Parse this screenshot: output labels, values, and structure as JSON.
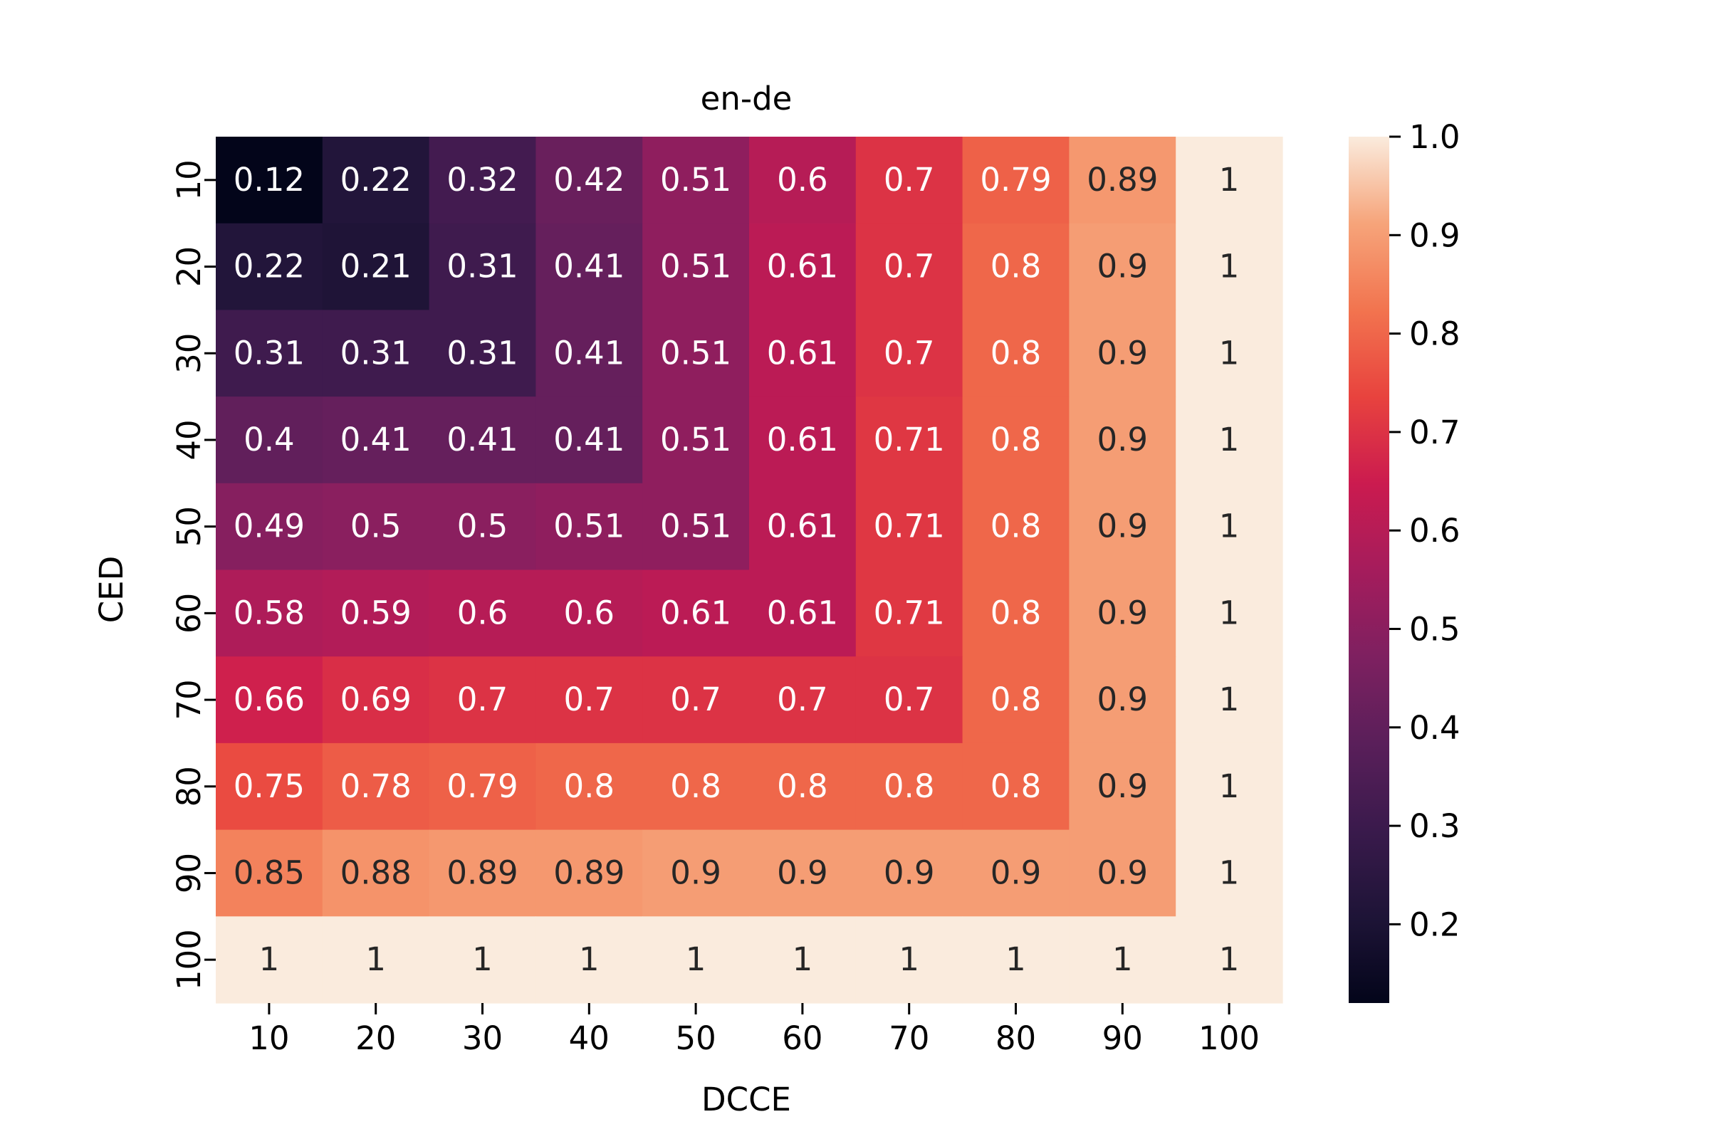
{
  "chart_data": {
    "type": "heatmap",
    "title": "en-de",
    "xlabel": "DCCE",
    "ylabel": "CED",
    "x_categories": [
      "10",
      "20",
      "30",
      "40",
      "50",
      "60",
      "70",
      "80",
      "90",
      "100"
    ],
    "y_categories": [
      "10",
      "20",
      "30",
      "40",
      "50",
      "60",
      "70",
      "80",
      "90",
      "100"
    ],
    "values": [
      [
        0.12,
        0.22,
        0.32,
        0.42,
        0.51,
        0.6,
        0.7,
        0.79,
        0.89,
        1
      ],
      [
        0.22,
        0.21,
        0.31,
        0.41,
        0.51,
        0.61,
        0.7,
        0.8,
        0.9,
        1
      ],
      [
        0.31,
        0.31,
        0.31,
        0.41,
        0.51,
        0.61,
        0.7,
        0.8,
        0.9,
        1
      ],
      [
        0.4,
        0.41,
        0.41,
        0.41,
        0.51,
        0.61,
        0.71,
        0.8,
        0.9,
        1
      ],
      [
        0.49,
        0.5,
        0.5,
        0.51,
        0.51,
        0.61,
        0.71,
        0.8,
        0.9,
        1
      ],
      [
        0.58,
        0.59,
        0.6,
        0.6,
        0.61,
        0.61,
        0.71,
        0.8,
        0.9,
        1
      ],
      [
        0.66,
        0.69,
        0.7,
        0.7,
        0.7,
        0.7,
        0.7,
        0.8,
        0.9,
        1
      ],
      [
        0.75,
        0.78,
        0.79,
        0.8,
        0.8,
        0.8,
        0.8,
        0.8,
        0.9,
        1
      ],
      [
        0.85,
        0.88,
        0.89,
        0.89,
        0.9,
        0.9,
        0.9,
        0.9,
        0.9,
        1
      ],
      [
        1,
        1,
        1,
        1,
        1,
        1,
        1,
        1,
        1,
        1
      ]
    ],
    "colorbar": {
      "ticks": [
        "0.2",
        "0.3",
        "0.4",
        "0.5",
        "0.6",
        "0.7",
        "0.8",
        "0.9",
        "1.0"
      ],
      "range": [
        0.12,
        1.0
      ]
    },
    "colormap": "rocket",
    "annotations": "cell values shown"
  }
}
